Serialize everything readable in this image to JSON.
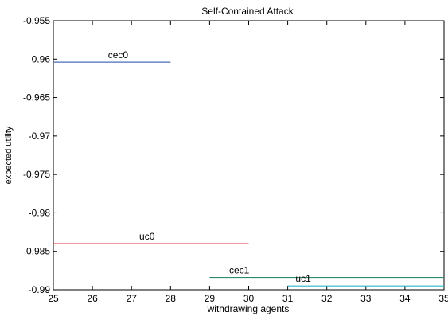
{
  "chart_data": {
    "type": "line",
    "title": "Self-Contained Attack",
    "xlabel": "withdrawing agents",
    "ylabel": "expected utility",
    "xlim": [
      25,
      35
    ],
    "ylim": [
      -0.99,
      -0.955
    ],
    "grid": false,
    "x_ticks": [
      25,
      26,
      27,
      28,
      29,
      30,
      31,
      32,
      33,
      34,
      35
    ],
    "y_ticks": [
      -0.955,
      -0.96,
      -0.965,
      -0.97,
      -0.975,
      -0.98,
      -0.985,
      -0.99
    ],
    "y_tick_labels": [
      "-0.955",
      "-0.96",
      "-0.965",
      "-0.97",
      "-0.975",
      "-0.98",
      "-0.985",
      "-0.99"
    ],
    "series": [
      {
        "name": "cec0",
        "x": [
          25,
          28
        ],
        "y": [
          -0.9604,
          -0.9604
        ],
        "color": "#4a6fb5",
        "label_x": 26.4
      },
      {
        "name": "uc0",
        "x": [
          25,
          30
        ],
        "y": [
          -0.984,
          -0.984
        ],
        "color": "#e0303a",
        "label_x": 27.2
      },
      {
        "name": "cec1",
        "x": [
          29,
          35
        ],
        "y": [
          -0.9884,
          -0.9884
        ],
        "color": "#2e8b6e",
        "label_x": 29.5
      },
      {
        "name": "uc1",
        "x": [
          31,
          35
        ],
        "y": [
          -0.9895,
          -0.9895
        ],
        "color": "#2ab7c9",
        "label_x": 31.2
      }
    ]
  }
}
